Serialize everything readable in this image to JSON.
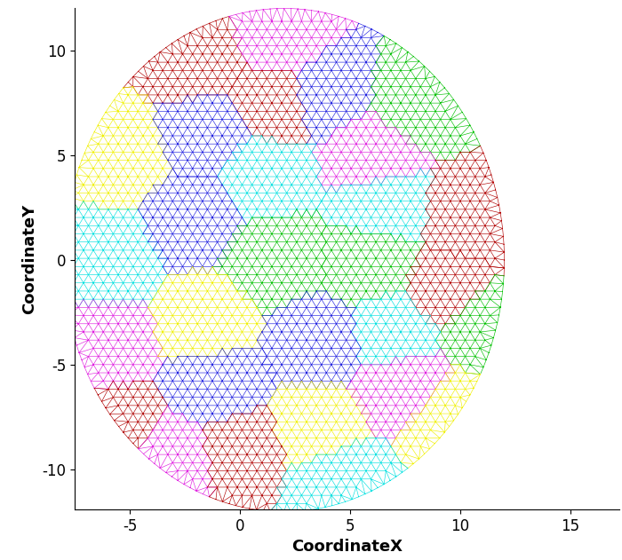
{
  "chart_data": {
    "type": "mesh",
    "x_label": "CoordinateX",
    "y_label": "CoordinateY",
    "xlim": [
      -7.5,
      17.2
    ],
    "ylim": [
      -11.9,
      12
    ],
    "xticks": [
      -5,
      0,
      5,
      10,
      15
    ],
    "yticks": [
      -10,
      -5,
      0,
      5,
      10
    ],
    "domain": {
      "center": [
        2,
        0
      ],
      "radii": [
        10,
        12
      ]
    },
    "regions": [
      {
        "x": -2,
        "y": 9.5,
        "color": "#b00000"
      },
      {
        "x": 2,
        "y": 10.5,
        "color": "#e020e0"
      },
      {
        "x": 1.5,
        "y": 7.5,
        "color": "#b00000"
      },
      {
        "x": 4,
        "y": 8,
        "color": "#2020e0"
      },
      {
        "x": 8,
        "y": 7.5,
        "color": "#00c000"
      },
      {
        "x": -5.5,
        "y": 5,
        "color": "#f0f000"
      },
      {
        "x": -1.5,
        "y": 6,
        "color": "#2020e0"
      },
      {
        "x": 6,
        "y": 5,
        "color": "#e020e0"
      },
      {
        "x": 1,
        "y": 4,
        "color": "#00e0e0"
      },
      {
        "x": 6.5,
        "y": 2.5,
        "color": "#00e0e0"
      },
      {
        "x": 10.5,
        "y": 2,
        "color": "#b00000"
      },
      {
        "x": -6,
        "y": 0,
        "color": "#00e0e0"
      },
      {
        "x": -2,
        "y": 2,
        "color": "#2020e0"
      },
      {
        "x": 1.5,
        "y": 0,
        "color": "#00c000"
      },
      {
        "x": 6,
        "y": 0,
        "color": "#00c000"
      },
      {
        "x": 9.5,
        "y": -1.5,
        "color": "#b00000"
      },
      {
        "x": 11,
        "y": -3,
        "color": "#00c000"
      },
      {
        "x": -6,
        "y": -4,
        "color": "#e020e0"
      },
      {
        "x": -1.5,
        "y": -3,
        "color": "#f0f000"
      },
      {
        "x": 7,
        "y": -3.5,
        "color": "#00e0e0"
      },
      {
        "x": 3.5,
        "y": -4,
        "color": "#2020e0"
      },
      {
        "x": -1,
        "y": -6,
        "color": "#2020e0"
      },
      {
        "x": -5.5,
        "y": -8,
        "color": "#b00000"
      },
      {
        "x": 3.5,
        "y": -8,
        "color": "#f0f000"
      },
      {
        "x": 7.5,
        "y": -6,
        "color": "#e020e0"
      },
      {
        "x": 9.5,
        "y": -7.5,
        "color": "#f0f000"
      },
      {
        "x": -3,
        "y": -9.5,
        "color": "#e020e0"
      },
      {
        "x": 0,
        "y": -9,
        "color": "#b00000"
      },
      {
        "x": 4.5,
        "y": -10.5,
        "color": "#00e0e0"
      }
    ]
  }
}
